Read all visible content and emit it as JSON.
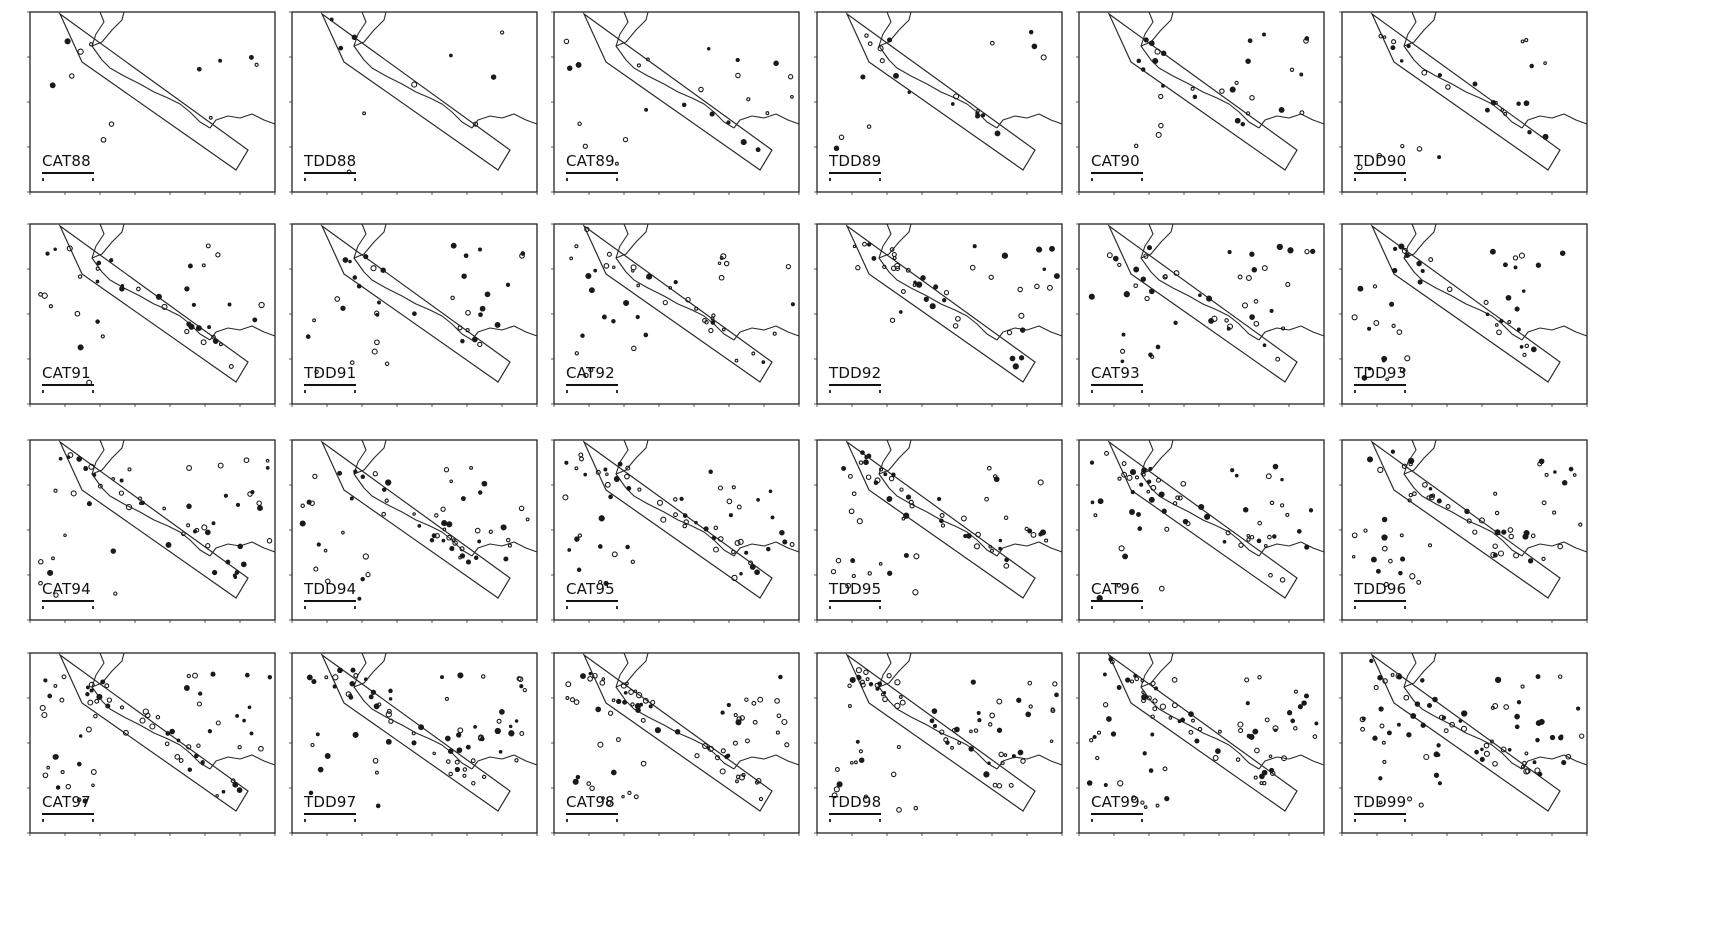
{
  "panels": [
    {
      "label": "CAT88",
      "density": 12,
      "seed": 1
    },
    {
      "label": "TDD88",
      "density": 10,
      "seed": 2
    },
    {
      "label": "CAT89",
      "density": 24,
      "seed": 3
    },
    {
      "label": "TDD89",
      "density": 22,
      "seed": 4
    },
    {
      "label": "CAT90",
      "density": 30,
      "seed": 5
    },
    {
      "label": "TDD90",
      "density": 28,
      "seed": 6
    },
    {
      "label": "CAT91",
      "density": 40,
      "seed": 7
    },
    {
      "label": "TDD91",
      "density": 38,
      "seed": 8
    },
    {
      "label": "CAT92",
      "density": 46,
      "seed": 9
    },
    {
      "label": "TDD92",
      "density": 44,
      "seed": 10
    },
    {
      "label": "CAT93",
      "density": 48,
      "seed": 11
    },
    {
      "label": "TDD93",
      "density": 46,
      "seed": 12
    },
    {
      "label": "CAT94",
      "density": 60,
      "seed": 13
    },
    {
      "label": "TDD94",
      "density": 58,
      "seed": 14
    },
    {
      "label": "CAT95",
      "density": 64,
      "seed": 15
    },
    {
      "label": "TDD95",
      "density": 62,
      "seed": 16
    },
    {
      "label": "CAT96",
      "density": 66,
      "seed": 17
    },
    {
      "label": "TDD96",
      "density": 64,
      "seed": 18
    },
    {
      "label": "CAT97",
      "density": 74,
      "seed": 19
    },
    {
      "label": "TDD97",
      "density": 72,
      "seed": 20
    },
    {
      "label": "CAT98",
      "density": 78,
      "seed": 21
    },
    {
      "label": "TDD98",
      "density": 76,
      "seed": 22
    },
    {
      "label": "CAT99",
      "density": 82,
      "seed": 23
    },
    {
      "label": "TDD99",
      "density": 80,
      "seed": 24
    }
  ]
}
